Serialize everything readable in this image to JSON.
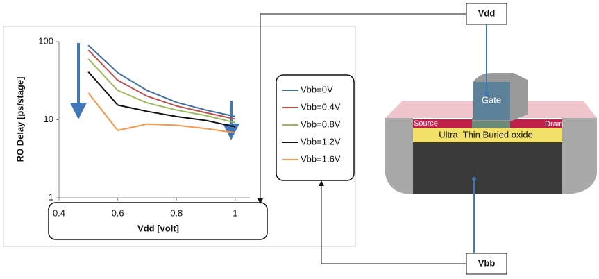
{
  "chart_data": {
    "type": "line",
    "y_title": "RO Delay [ps/stage]",
    "x_title": "Vdd [volt]",
    "log_y": true,
    "grid": false,
    "x": [
      0.5,
      0.6,
      0.7,
      0.8,
      0.9,
      1.0
    ],
    "xlim": [
      0.4,
      1.05
    ],
    "xticks": [
      0.4,
      0.6,
      0.8,
      1
    ],
    "ylim": [
      1,
      100
    ],
    "yticks": [
      1,
      10,
      100
    ],
    "series": [
      {
        "name": "Vbb=0V",
        "color": "#3f6ea8",
        "values": [
          90,
          40,
          23.7,
          16.7,
          13.3,
          11
        ]
      },
      {
        "name": "Vbb=0.4V",
        "color": "#c0504d",
        "values": [
          78,
          32,
          20,
          15,
          12.3,
          10.2
        ]
      },
      {
        "name": "Vbb=0.8V",
        "color": "#9bbb59",
        "values": [
          60,
          23.7,
          16.4,
          13.3,
          11.3,
          9.2
        ]
      },
      {
        "name": "Vbb=1.2V",
        "color": "#111111",
        "values": [
          41,
          15.4,
          12.8,
          11,
          9.8,
          8.1
        ]
      },
      {
        "name": "Vbb=1.6V",
        "color": "#f79646",
        "values": [
          22,
          7.3,
          8.8,
          8.5,
          7.7,
          6.8
        ]
      }
    ]
  },
  "diagram": {
    "vdd": "Vdd",
    "vbb": "Vbb",
    "gate": "Gate",
    "source": "Source",
    "drain": "Drain",
    "oxide": "Ultra. Thin Buried oxide"
  }
}
